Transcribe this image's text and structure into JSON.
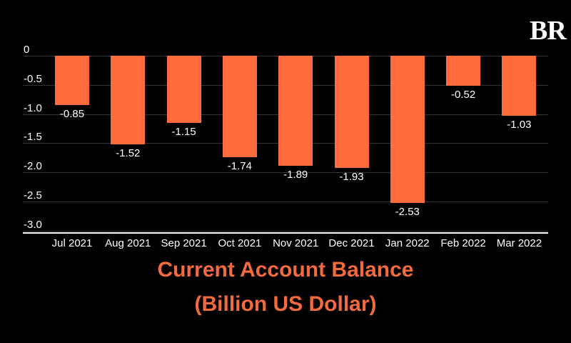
{
  "brand": {
    "logo_text": "BR"
  },
  "chart_data": {
    "type": "bar",
    "title": "Current Account Balance",
    "subtitle": "(Billion US Dollar)",
    "xlabel": "",
    "ylabel": "",
    "categories": [
      "Jul 2021",
      "Aug 2021",
      "Sep 2021",
      "Oct 2021",
      "Nov 2021",
      "Dec 2021",
      "Jan 2022",
      "Feb 2022",
      "Mar 2022"
    ],
    "values": [
      -0.85,
      -1.52,
      -1.15,
      -1.74,
      -1.89,
      -1.93,
      -2.53,
      -0.52,
      -1.03
    ],
    "value_labels": [
      "-0.85",
      "-1.52",
      "-1.15",
      "-1.74",
      "-1.89",
      "-1.93",
      "-2.53",
      "-0.52",
      "-1.03"
    ],
    "yticks": [
      "0",
      "-0.5",
      "-1.0",
      "-1.5",
      "-2.0",
      "-2.5",
      "-3.0"
    ],
    "ylim": [
      -3.0,
      0
    ],
    "grid": true,
    "legend": null,
    "bar_color": "#ff6b3a",
    "title_color": "#f26a3e",
    "background": "#000000"
  }
}
